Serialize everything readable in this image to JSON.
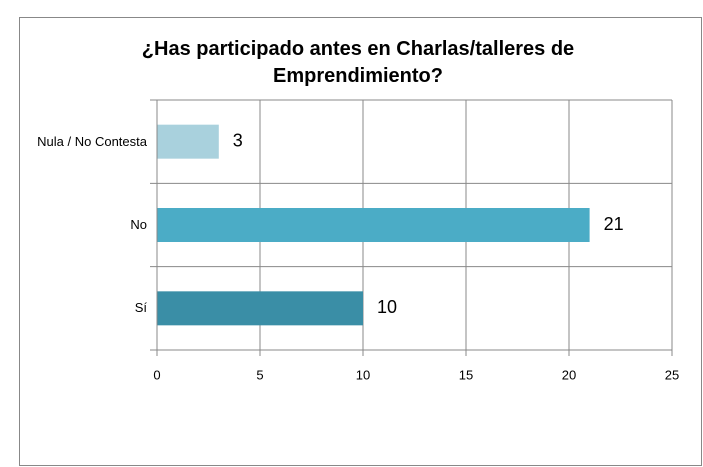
{
  "chart_data": {
    "type": "barh",
    "title": "¿Has participado antes en Charlas/talleres de Emprendimiento?",
    "categories": [
      "Nula / No Contesta",
      "No",
      "Sí"
    ],
    "values": [
      3,
      21,
      10
    ],
    "colors": [
      "#a9d1dd",
      "#4bacc6",
      "#3a8ea6"
    ],
    "xlim": [
      0,
      25
    ],
    "xticks": [
      0,
      5,
      10,
      15,
      20,
      25
    ],
    "grid": true
  }
}
